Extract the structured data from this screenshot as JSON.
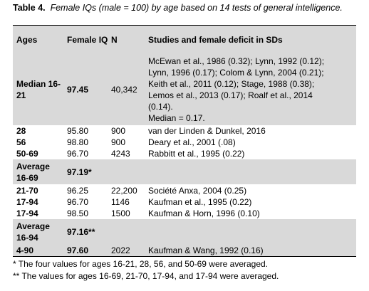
{
  "caption": {
    "label": "Table 4.",
    "text": "Female IQs (male = 100) by age based on 14 tests of general intelligence."
  },
  "table": {
    "headers": [
      "Ages",
      "Female IQ",
      "N",
      "Studies and female deficit in SDs"
    ],
    "rows": [
      {
        "ages": "Median 16-21",
        "iq": "97.45",
        "n": "40,342",
        "studies": [
          "McEwan et al., 1986 (0.32); Lynn, 1992 (0.12);",
          "Lynn, 1996 (0.17); Colom & Lynn, 2004 (0.21);",
          "Keith et al., 2011 (0.12); Stage, 1988 (0.38);",
          "Lemos et al., 2013 (0.17); Roalf et al., 2014",
          "(0.14).",
          "Median = 0.17."
        ]
      },
      {
        "ages": "28",
        "iq": "95.80",
        "n": "900",
        "studies": [
          "van der Linden & Dunkel, 2016"
        ]
      },
      {
        "ages": "56",
        "iq": "98.80",
        "n": "900",
        "studies": [
          "Deary et al., 2001 (.08)"
        ]
      },
      {
        "ages": "50-69",
        "iq": "96.70",
        "n": "4243",
        "studies": [
          "Rabbitt et al., 1995 (0.22)"
        ]
      },
      {
        "ages": "Average 16-69",
        "iq": "97.19*"
      },
      {
        "ages": "21-70",
        "iq": "96.25",
        "n": "22,200",
        "studies": [
          "Société Anxa, 2004 (0.25)"
        ]
      },
      {
        "ages": "17-94",
        "iq": "96.70",
        "n": "1146",
        "studies": [
          "Kaufman et al., 1995 (0.22)"
        ]
      },
      {
        "ages": "17-94",
        "iq": "98.50",
        "n": "1500",
        "studies": [
          "Kaufman & Horn, 1996 (0.10)"
        ]
      },
      {
        "ages": "Average 16-94",
        "iq": "97.16**"
      },
      {
        "ages": "4-90",
        "iq": "97.60",
        "n": "2022",
        "studies": [
          "Kaufman & Wang, 1992 (0.16)"
        ]
      }
    ]
  },
  "footnotes": [
    "* The four values for ages 16-21, 28, 56, and 50-69 were averaged.",
    "** The values for ages 16-69, 21-70, 17-94, and 17-94 were averaged."
  ]
}
